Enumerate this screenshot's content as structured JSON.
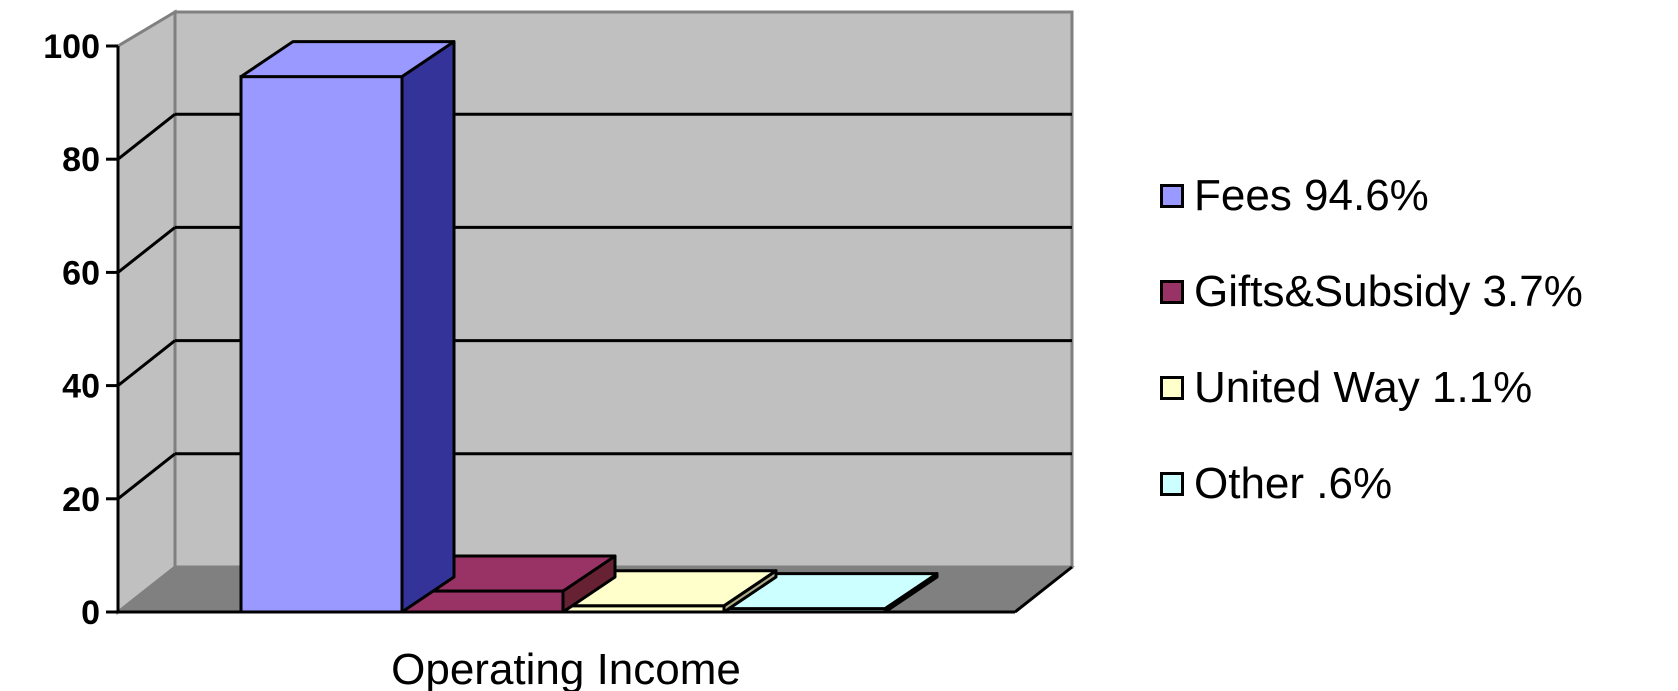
{
  "chart_data": {
    "type": "bar",
    "style": "3d",
    "categories": [
      "Operating Income"
    ],
    "series": [
      {
        "name": "Fees  94.6%",
        "values": [
          94.6
        ],
        "color": "#9999ff",
        "side_color": "#333399"
      },
      {
        "name": "Gifts&Subsidy 3.7%",
        "values": [
          3.7
        ],
        "color": "#993366",
        "side_color": "#662233"
      },
      {
        "name": "United Way  1.1%",
        "values": [
          1.1
        ],
        "color": "#ffffcc",
        "side_color": "#aaaa88"
      },
      {
        "name": "Other  .6%",
        "values": [
          0.6
        ],
        "color": "#ccffff",
        "side_color": "#88aaaa"
      }
    ],
    "ylim": [
      0,
      100
    ],
    "yticks": [
      "0",
      "20",
      "40",
      "60",
      "80",
      "100"
    ],
    "grid": true,
    "legend": "right",
    "colors": {
      "wall": "#c0c0c0",
      "floor": "#808080",
      "gridline": "#000000"
    }
  }
}
